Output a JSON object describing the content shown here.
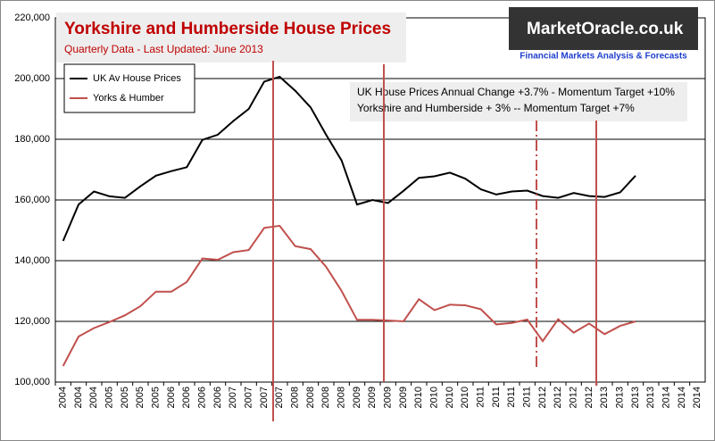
{
  "chart_data": {
    "type": "line",
    "title": "Yorkshire and Humberside House Prices",
    "subtitle": "Quarterly Data - Last Updated: June 2013",
    "annotations": [
      "UK House Prices Annual Change +3.7% - Momentum Target +10%",
      "Yorkshire and Humberside + 3% -- Momentum Target +7%"
    ],
    "logo": {
      "name": "MarketOracle.co.uk",
      "tagline": "Financial Markets Analysis & Forecasts"
    },
    "categories": [
      "2004",
      "2004",
      "2004",
      "2005",
      "2005",
      "2005",
      "2005",
      "2006",
      "2006",
      "2006",
      "2006",
      "2007",
      "2007",
      "2007",
      "2007",
      "2008",
      "2008",
      "2008",
      "2008",
      "2009",
      "2009",
      "2009",
      "2009",
      "2010",
      "2010",
      "2010",
      "2010",
      "2011",
      "2011",
      "2011",
      "2011",
      "2012",
      "2012",
      "2012",
      "2012",
      "2013",
      "2013",
      "2013",
      "2013",
      "2014",
      "2014",
      "2014"
    ],
    "series": [
      {
        "name": "UK Av House Prices",
        "color": "#000000",
        "values": [
          146500,
          158500,
          162800,
          161200,
          160700,
          164500,
          168000,
          169500,
          170800,
          179800,
          181500,
          186000,
          190000,
          199000,
          200600,
          196000,
          190500,
          181500,
          173000,
          158500,
          160000,
          159000,
          163000,
          167300,
          167800,
          169000,
          167000,
          163500,
          161800,
          162800,
          163100,
          161300,
          160700,
          162300,
          161300,
          161000,
          162500,
          168000,
          null,
          null,
          null,
          null
        ]
      },
      {
        "name": "Yorks & Humber",
        "color": "#c0504d",
        "values": [
          105300,
          115000,
          117800,
          119800,
          122000,
          125000,
          129800,
          129800,
          133000,
          140700,
          140300,
          142800,
          143500,
          150800,
          151500,
          144800,
          143800,
          138000,
          130000,
          120500,
          120500,
          120300,
          120000,
          127300,
          123700,
          125500,
          125300,
          124000,
          119000,
          119500,
          120600,
          113500,
          120700,
          116300,
          119300,
          115800,
          118500,
          120000,
          null,
          null,
          null,
          null
        ]
      }
    ],
    "ylim": [
      100000,
      220000
    ],
    "yticks": [
      {
        "value": 100000,
        "label": "100,000"
      },
      {
        "value": 120000,
        "label": "120,000"
      },
      {
        "value": 140000,
        "label": "140,000"
      },
      {
        "value": 160000,
        "label": "160,000"
      },
      {
        "value": 180000,
        "label": "180,000"
      },
      {
        "value": 200000,
        "label": "200,000"
      },
      {
        "value": 220000,
        "label": "220,000"
      }
    ],
    "grid": true
  }
}
